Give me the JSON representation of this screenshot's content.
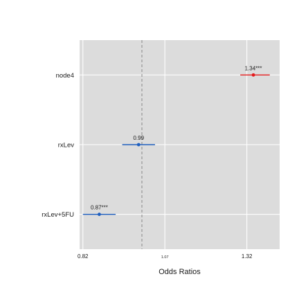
{
  "chart_data": {
    "type": "scatter",
    "title": "",
    "xlabel": "Odds Ratios",
    "ylabel": "",
    "xlim": [
      0.81,
      1.42
    ],
    "x_ticks": [
      {
        "value": 0.82,
        "label": "0.82"
      },
      {
        "value": 1.07,
        "label": "1.07",
        "small": true
      },
      {
        "value": 1.32,
        "label": "1.32"
      }
    ],
    "reference_line": 1.0,
    "grid": true,
    "categories": [
      "node4",
      "rxLev",
      "rxLev+5FU"
    ],
    "points": [
      {
        "term": "node4",
        "estimate": 1.34,
        "conf_low": 1.3,
        "conf_high": 1.39,
        "label": "1.34***",
        "color": "#e41a1c"
      },
      {
        "term": "rxLev",
        "estimate": 0.99,
        "conf_low": 0.94,
        "conf_high": 1.04,
        "label": "0.99",
        "color": "#1f5fbf"
      },
      {
        "term": "rxLev+5FU",
        "estimate": 0.87,
        "conf_low": 0.82,
        "conf_high": 0.92,
        "label": "0.87***",
        "color": "#1f5fbf"
      }
    ]
  }
}
